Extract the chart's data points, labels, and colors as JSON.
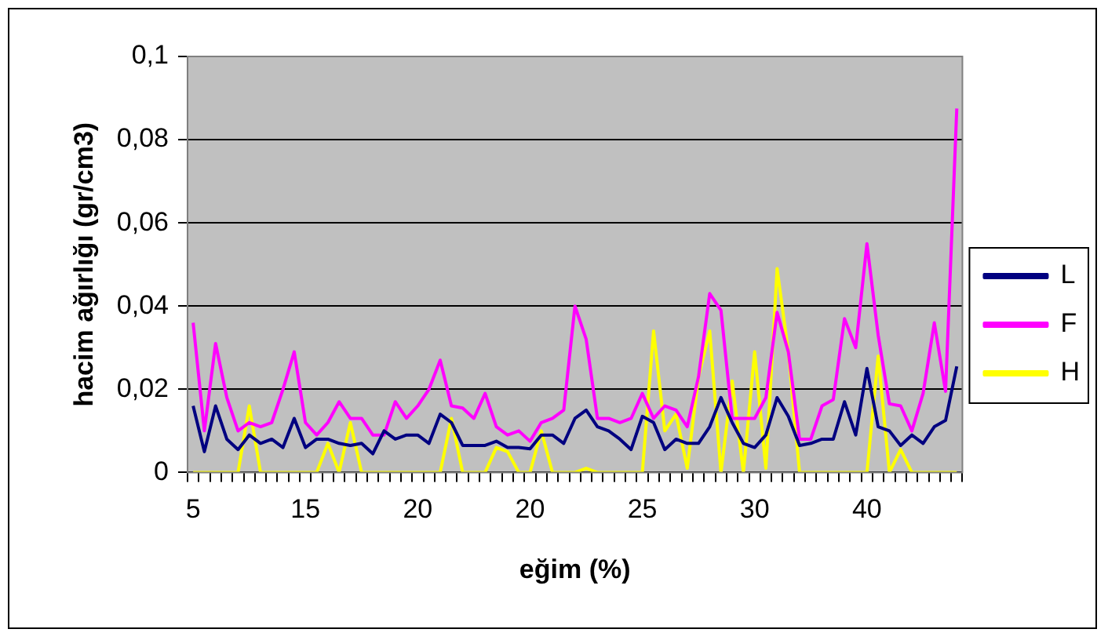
{
  "chart_data": {
    "type": "line",
    "xlabel": "eğim (%)",
    "ylabel": "hacim ağırlığı (gr/cm3)",
    "categories": [
      "5",
      null,
      null,
      null,
      null,
      null,
      null,
      null,
      null,
      null,
      "15",
      null,
      null,
      null,
      null,
      null,
      null,
      null,
      null,
      null,
      "20",
      null,
      null,
      null,
      null,
      null,
      null,
      null,
      null,
      null,
      "20",
      null,
      null,
      null,
      null,
      null,
      null,
      null,
      null,
      null,
      "25",
      null,
      null,
      null,
      null,
      null,
      null,
      null,
      null,
      null,
      "30",
      null,
      null,
      null,
      null,
      null,
      null,
      null,
      null,
      null,
      "40",
      null,
      null,
      null,
      null,
      null,
      null,
      null,
      null
    ],
    "ylim": [
      0,
      0.1
    ],
    "yticks": [
      {
        "value": 0,
        "label": "0"
      },
      {
        "value": 0.02,
        "label": "0,02"
      },
      {
        "value": 0.04,
        "label": "0,04"
      },
      {
        "value": 0.06,
        "label": "0,06"
      },
      {
        "value": 0.08,
        "label": "0,08"
      },
      {
        "value": 0.1,
        "label": "0,1"
      }
    ],
    "grid": "y",
    "legend": "right",
    "marker": "none",
    "line_style": "solid",
    "series": [
      {
        "name": "L",
        "color": "#000080",
        "values": [
          0.016,
          0.005,
          0.016,
          0.008,
          0.0055,
          0.009,
          0.007,
          0.008,
          0.006,
          0.013,
          0.006,
          0.008,
          0.008,
          0.007,
          0.0065,
          0.007,
          0.0045,
          0.01,
          0.008,
          0.009,
          0.009,
          0.007,
          0.014,
          0.012,
          0.0065,
          0.0065,
          0.0065,
          0.0075,
          0.006,
          0.006,
          0.0057,
          0.009,
          0.009,
          0.007,
          0.013,
          0.015,
          0.011,
          0.01,
          0.008,
          0.0055,
          0.0135,
          0.012,
          0.0055,
          0.008,
          0.007,
          0.007,
          0.011,
          0.018,
          0.012,
          0.007,
          0.006,
          0.009,
          0.018,
          0.0135,
          0.0065,
          0.007,
          0.008,
          0.008,
          0.017,
          0.009,
          0.025,
          0.011,
          0.01,
          0.0065,
          0.009,
          0.007,
          0.011,
          0.0125,
          0.0255
        ]
      },
      {
        "name": "F",
        "color": "#ff00ff",
        "values": [
          0.036,
          0.01,
          0.031,
          0.018,
          0.01,
          0.012,
          0.011,
          0.012,
          0.02,
          0.029,
          0.012,
          0.009,
          0.012,
          0.017,
          0.013,
          0.013,
          0.009,
          0.009,
          0.017,
          0.013,
          0.016,
          0.02,
          0.027,
          0.016,
          0.0155,
          0.013,
          0.019,
          0.011,
          0.009,
          0.01,
          0.0075,
          0.012,
          0.013,
          0.015,
          0.04,
          0.032,
          0.013,
          0.013,
          0.012,
          0.013,
          0.019,
          0.013,
          0.016,
          0.015,
          0.011,
          0.023,
          0.043,
          0.039,
          0.013,
          0.013,
          0.013,
          0.018,
          0.0385,
          0.029,
          0.008,
          0.008,
          0.016,
          0.0175,
          0.037,
          0.03,
          0.055,
          0.033,
          0.0165,
          0.016,
          0.01,
          0.019,
          0.036,
          0.0195,
          0.0875
        ]
      },
      {
        "name": "H",
        "color": "#ffff00",
        "values": [
          0,
          0,
          0,
          0,
          0,
          0.016,
          0,
          0,
          0,
          0,
          0,
          0,
          0.007,
          0,
          0.012,
          0,
          0,
          0,
          0,
          0,
          0,
          0,
          0,
          0.013,
          0,
          0,
          0,
          0.006,
          0.005,
          0,
          0,
          0.01,
          0,
          0,
          0,
          0.001,
          0,
          0,
          0,
          0,
          0,
          0.034,
          0.01,
          0.014,
          0.001,
          0.023,
          0.034,
          0,
          0.022,
          0,
          0.029,
          0.001,
          0.049,
          0.029,
          0,
          0,
          0,
          0,
          0,
          0,
          0,
          0.028,
          0,
          0.0055,
          0,
          0,
          0,
          0,
          0
        ]
      }
    ]
  }
}
